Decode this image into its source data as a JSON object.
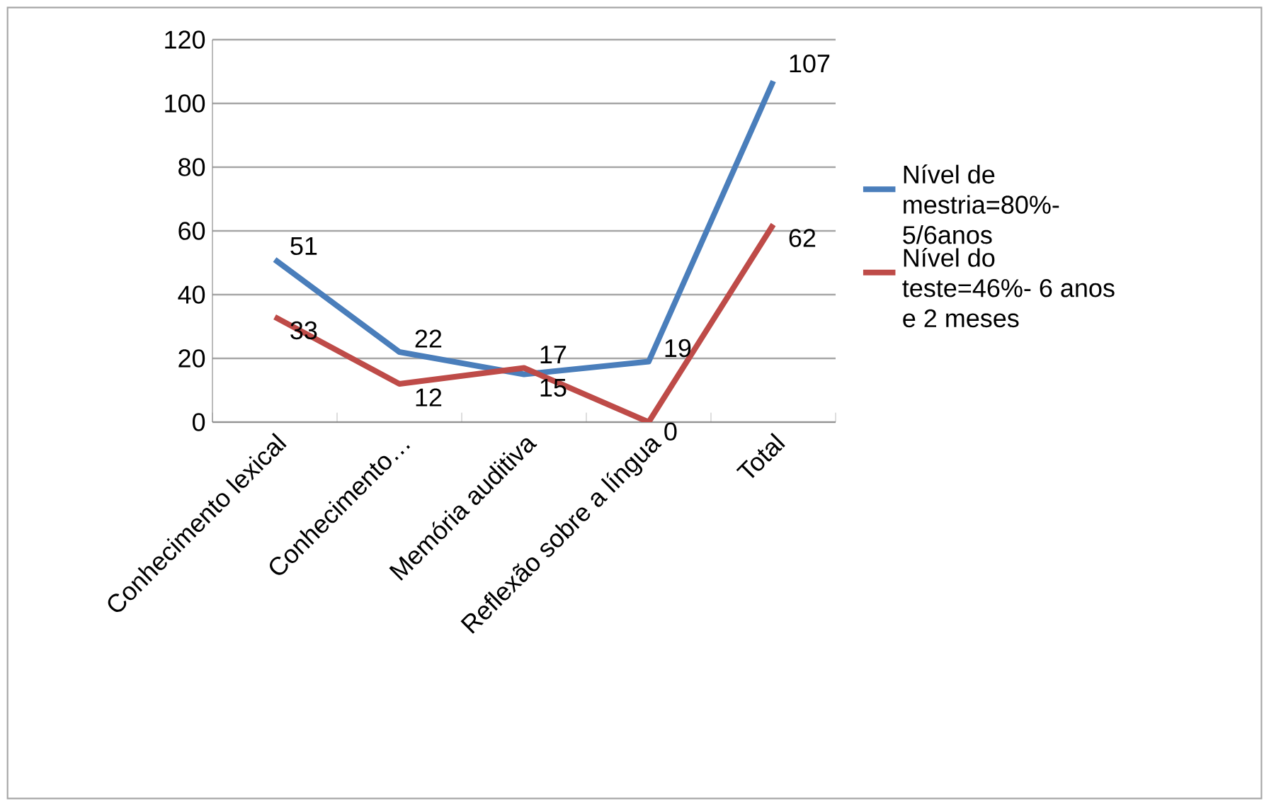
{
  "chart_data": {
    "type": "line",
    "categories": [
      "Conhecimento lexical",
      "Conhecimento…",
      "Memória auditiva",
      "Reflexão sobre a língua",
      "Total"
    ],
    "series": [
      {
        "name": "Nível de mestria=80%- 5/6anos",
        "color": "#4a7ebb",
        "values": [
          51,
          22,
          15,
          19,
          107
        ]
      },
      {
        "name": "Nível do teste=46%- 6 anos e 2 meses",
        "color": "#be4b48",
        "values": [
          33,
          12,
          17,
          0,
          62
        ]
      }
    ],
    "ylim": [
      0,
      120
    ],
    "yticks": [
      0,
      20,
      40,
      60,
      80,
      100,
      120
    ],
    "grid": "y",
    "legend": "right",
    "data_labels": true,
    "marker": "none",
    "line_style": "solid"
  }
}
